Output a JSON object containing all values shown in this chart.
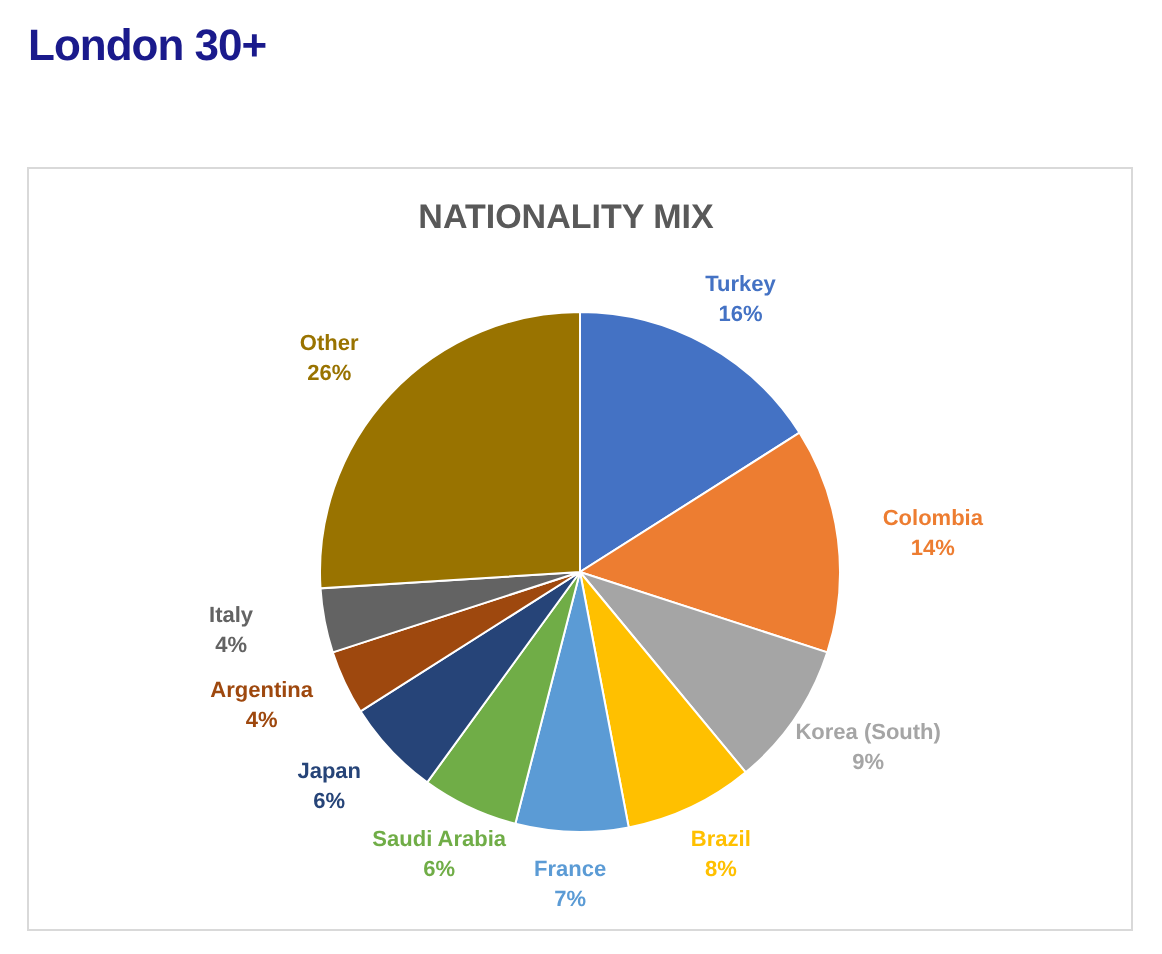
{
  "chart_data": {
    "type": "pie",
    "title": "London 30+",
    "subtitle": "NATIONALITY MIX",
    "categories": [
      "Turkey",
      "Colombia",
      "Korea (South)",
      "Brazil",
      "France",
      "Saudi Arabia",
      "Japan",
      "Argentina",
      "Italy",
      "Other"
    ],
    "values": [
      16,
      14,
      9,
      8,
      7,
      6,
      6,
      4,
      4,
      26
    ],
    "value_labels": [
      "16%",
      "14%",
      "9%",
      "8%",
      "7%",
      "6%",
      "6%",
      "4%",
      "4%",
      "26%"
    ],
    "colors": [
      "#4472c4",
      "#ed7d31",
      "#a5a5a5",
      "#ffc000",
      "#5b9bd5",
      "#70ad47",
      "#264478",
      "#9e480e",
      "#636363",
      "#997300"
    ]
  }
}
